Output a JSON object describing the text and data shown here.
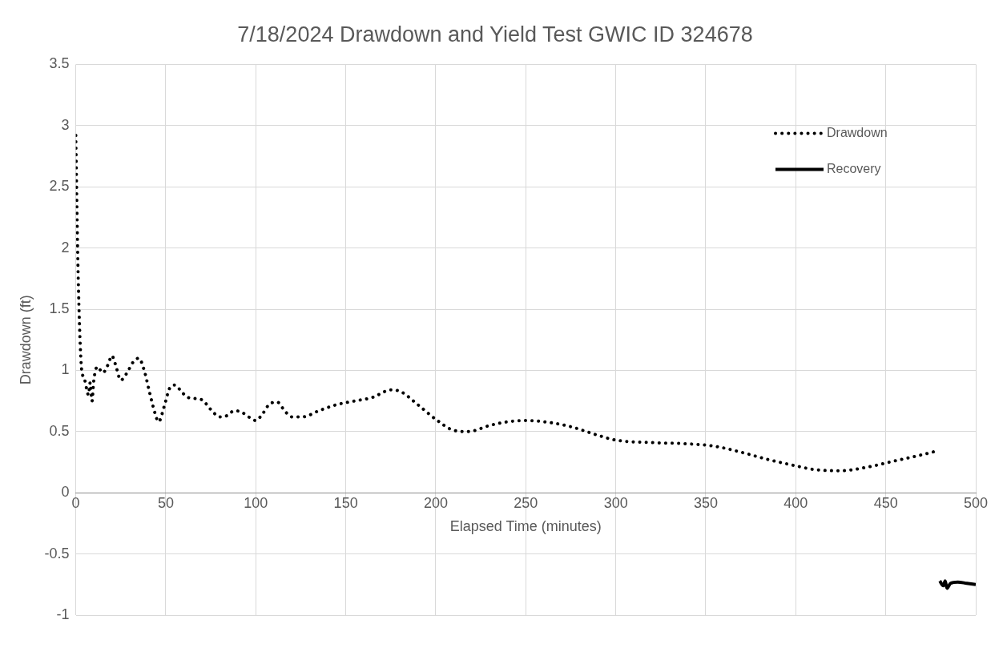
{
  "chart_data": {
    "type": "line",
    "title": "7/18/2024 Drawdown and Yield Test GWIC ID 324678",
    "xlabel": "Elapsed Time (minutes)",
    "ylabel": "Drawdown (ft)",
    "xlim": [
      0,
      500
    ],
    "xticks": [
      0,
      50,
      100,
      150,
      200,
      250,
      300,
      350,
      400,
      450,
      500
    ],
    "ylim": [
      -1,
      3.5
    ],
    "yticks": [
      -1,
      -0.5,
      0,
      0.5,
      1,
      1.5,
      2,
      2.5,
      3,
      3.5
    ],
    "grid": true,
    "legend": "top right",
    "marker": "none",
    "series": [
      {
        "name": "Drawdown",
        "color": "#000000",
        "line_style": "dotted",
        "x": [
          0,
          1,
          2,
          3,
          4,
          5,
          6,
          7,
          8,
          9,
          10,
          12,
          15,
          18,
          20,
          22,
          25,
          28,
          32,
          35,
          38,
          41,
          44,
          46,
          49,
          52,
          55,
          58,
          62,
          70,
          75,
          80,
          84,
          88,
          92,
          96,
          100,
          104,
          108,
          112,
          116,
          120,
          126,
          135,
          145,
          155,
          165,
          175,
          180,
          190,
          200,
          210,
          218,
          230,
          240,
          250,
          265,
          275,
          290,
          300,
          320,
          340,
          355,
          370,
          385,
          400,
          410,
          425,
          440,
          455,
          470,
          478
        ],
        "values": [
          2.92,
          2.0,
          1.4,
          1.05,
          0.95,
          0.92,
          0.85,
          0.8,
          0.9,
          0.75,
          0.92,
          1.03,
          0.98,
          1.05,
          1.12,
          1.05,
          0.92,
          0.97,
          1.07,
          1.1,
          1.0,
          0.82,
          0.65,
          0.58,
          0.7,
          0.85,
          0.88,
          0.84,
          0.78,
          0.76,
          0.68,
          0.62,
          0.63,
          0.67,
          0.66,
          0.62,
          0.59,
          0.65,
          0.73,
          0.74,
          0.67,
          0.62,
          0.62,
          0.67,
          0.72,
          0.75,
          0.78,
          0.84,
          0.83,
          0.72,
          0.6,
          0.51,
          0.5,
          0.55,
          0.58,
          0.59,
          0.57,
          0.54,
          0.47,
          0.43,
          0.41,
          0.4,
          0.38,
          0.33,
          0.27,
          0.22,
          0.19,
          0.18,
          0.21,
          0.26,
          0.31,
          0.34
        ]
      },
      {
        "name": "Recovery",
        "color": "#000000",
        "line_style": "solid",
        "x": [
          480,
          482,
          483,
          484,
          486,
          490,
          495,
          500
        ],
        "values": [
          -0.72,
          -0.76,
          -0.72,
          -0.78,
          -0.74,
          -0.73,
          -0.74,
          -0.75
        ]
      }
    ]
  }
}
